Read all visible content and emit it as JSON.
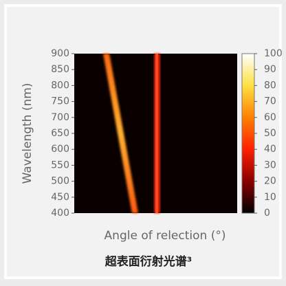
{
  "chart_data": {
    "type": "heatmap",
    "xlabel": "Angle of relection (°)",
    "ylabel": "Wavelength (nm)",
    "ylim": [
      400,
      900
    ],
    "yticks": [
      400,
      450,
      500,
      550,
      600,
      650,
      700,
      750,
      800,
      850,
      900
    ],
    "colormap": "hot",
    "clim": [
      0,
      100
    ],
    "cticks": [
      0,
      10,
      20,
      30,
      40,
      50,
      60,
      70,
      80,
      90,
      100
    ],
    "caption": "超表面衍射光谱³"
  }
}
